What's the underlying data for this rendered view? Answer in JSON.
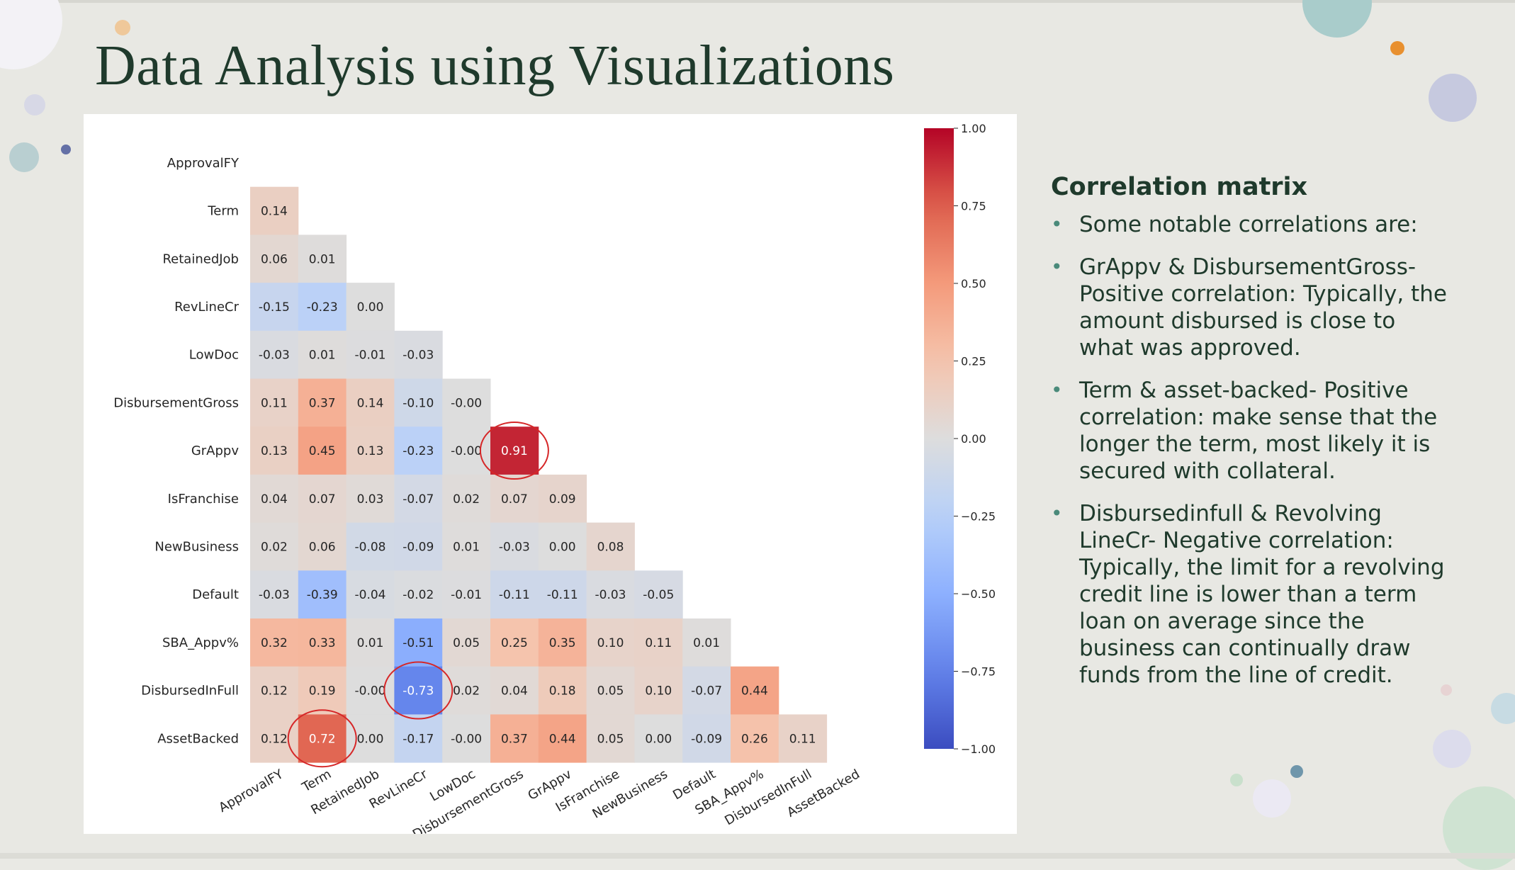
{
  "slide": {
    "title": "Data Analysis using Visualizations"
  },
  "notes": {
    "heading": "Correlation matrix",
    "bullets": [
      "Some notable correlations are:",
      "GrAppv & DisbursementGross- Positive correlation: Typically, the amount disbursed is close to what was approved.",
      "Term & asset-backed-  Positive correlation: make sense that the longer the term, most likely it is secured with collateral.",
      "Disbursedinfull & Revolving LineCr- Negative correlation: Typically, the limit for a revolving credit line is lower than a term loan on average since the business can continually draw funds from the line of credit."
    ]
  },
  "colors": {
    "title": "#1f3a2c",
    "cmap_low": "#3b4cc0",
    "cmap_mid": "#dddddd",
    "cmap_high": "#b40426",
    "highlight_circle": "#d62728"
  },
  "chart_data": {
    "type": "heatmap",
    "title": "",
    "variables": [
      "ApprovalFY",
      "Term",
      "RetainedJob",
      "RevLineCr",
      "LowDoc",
      "DisbursementGross",
      "GrAppv",
      "IsFranchise",
      "NewBusiness",
      "Default",
      "SBA_Appv%",
      "DisbursedInFull",
      "AssetBacked"
    ],
    "mask": "upper-triangle including diagonal",
    "matrix_lower": [
      [],
      [
        "0.14"
      ],
      [
        "0.06",
        "0.01"
      ],
      [
        "-0.15",
        "-0.23",
        "0.00"
      ],
      [
        "-0.03",
        "0.01",
        "-0.01",
        "-0.03"
      ],
      [
        "0.11",
        "0.37",
        "0.14",
        "-0.10",
        "-0.00"
      ],
      [
        "0.13",
        "0.45",
        "0.13",
        "-0.23",
        "-0.00",
        "0.91"
      ],
      [
        "0.04",
        "0.07",
        "0.03",
        "-0.07",
        "0.02",
        "0.07",
        "0.09"
      ],
      [
        "0.02",
        "0.06",
        "-0.08",
        "-0.09",
        "0.01",
        "-0.03",
        "0.00",
        "0.08"
      ],
      [
        "-0.03",
        "-0.39",
        "-0.04",
        "-0.02",
        "-0.01",
        "-0.11",
        "-0.11",
        "-0.03",
        "-0.05"
      ],
      [
        "0.32",
        "0.33",
        "0.01",
        "-0.51",
        "0.05",
        "0.25",
        "0.35",
        "0.10",
        "0.11",
        "0.01"
      ],
      [
        "0.12",
        "0.19",
        "-0.00",
        "-0.73",
        "0.02",
        "0.04",
        "0.18",
        "0.05",
        "0.10",
        "-0.07",
        "0.44"
      ],
      [
        "0.12",
        "0.72",
        "0.00",
        "-0.17",
        "-0.00",
        "0.37",
        "0.44",
        "0.05",
        "0.00",
        "-0.09",
        "0.26",
        "0.11"
      ]
    ],
    "colorbar": {
      "range": [
        -1.0,
        1.0
      ],
      "ticks": [
        "1.00",
        "0.75",
        "0.50",
        "0.25",
        "0.00",
        "−0.25",
        "−0.50",
        "−0.75",
        "−1.00"
      ]
    },
    "highlighted_cells": [
      {
        "row": "GrAppv",
        "col": "DisbursementGross",
        "value": "0.91"
      },
      {
        "row": "DisbursedInFull",
        "col": "RevLineCr",
        "value": "-0.73"
      },
      {
        "row": "AssetBacked",
        "col": "Term",
        "value": "0.72"
      }
    ]
  }
}
